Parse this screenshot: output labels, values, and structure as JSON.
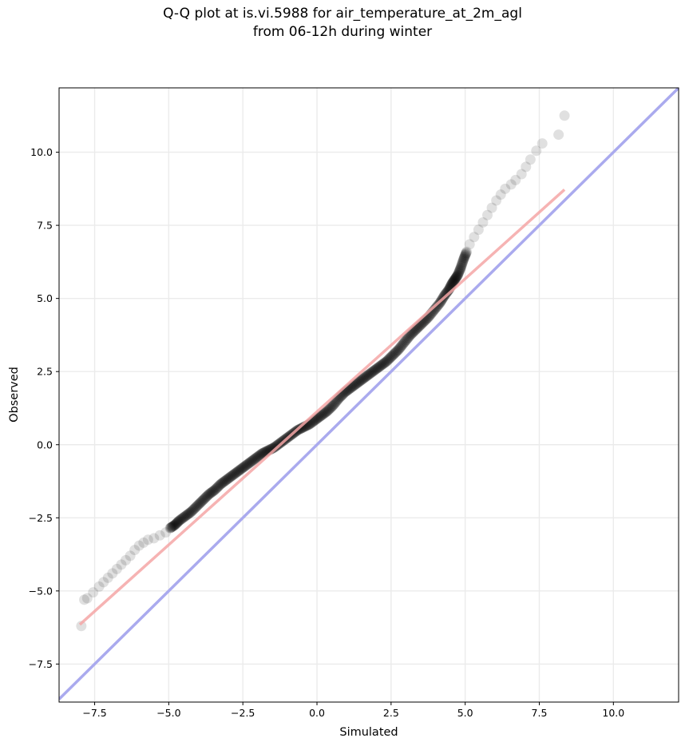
{
  "chart_data": {
    "type": "scatter",
    "title_lines": [
      "Q-Q plot at is.vi.5988 for air_temperature_at_2m_agl",
      "from 06-12h during winter"
    ],
    "xlabel": "Simulated",
    "ylabel": "Observed",
    "xlim": [
      -8.7,
      12.2
    ],
    "ylim": [
      -8.8,
      12.2
    ],
    "grid": true,
    "xticks": [
      -7.5,
      -5.0,
      -2.5,
      0.0,
      2.5,
      5.0,
      7.5,
      10.0
    ],
    "yticks": [
      -7.5,
      -5.0,
      -2.5,
      0.0,
      2.5,
      5.0,
      7.5,
      10.0
    ],
    "xtick_labels": [
      "−7.5",
      "−5.0",
      "−2.5",
      "0.0",
      "2.5",
      "5.0",
      "7.5",
      "10.0"
    ],
    "ytick_labels": [
      "−7.5",
      "−5.0",
      "−2.5",
      "0.0",
      "2.5",
      "5.0",
      "7.5",
      "10.0"
    ],
    "colors": {
      "points": "#000000",
      "identity_line": "#aaaaee",
      "fit_line": "#f4a6a6",
      "grid": "#ebebeb"
    },
    "identity_line": {
      "x": [
        -8.7,
        12.2
      ],
      "y": [
        -8.7,
        12.2
      ]
    },
    "fit_line": {
      "x": [
        -8.0,
        8.35
      ],
      "y": [
        -6.15,
        8.72
      ]
    },
    "points": {
      "x": [
        -7.95,
        -7.85,
        -7.75,
        -7.55,
        -7.35,
        -7.2,
        -7.05,
        -6.9,
        -6.75,
        -6.6,
        -6.45,
        -6.3,
        -6.15,
        -6.0,
        -5.85,
        -5.7,
        -5.5,
        -5.3,
        -5.1,
        -4.95,
        -4.8,
        -4.65,
        -4.45,
        -4.25,
        -4.05,
        -3.85,
        -3.65,
        -3.45,
        -3.25,
        -3.05,
        -2.85,
        -2.65,
        -2.45,
        -2.25,
        -2.05,
        -1.85,
        -1.65,
        -1.45,
        -1.25,
        -1.05,
        -0.85,
        -0.65,
        -0.45,
        -0.25,
        -0.05,
        0.15,
        0.35,
        0.55,
        0.75,
        0.95,
        1.15,
        1.35,
        1.55,
        1.75,
        1.95,
        2.15,
        2.35,
        2.55,
        2.75,
        2.95,
        3.15,
        3.35,
        3.55,
        3.75,
        3.95,
        4.15,
        4.3,
        4.45,
        4.55,
        4.65,
        4.75,
        4.85,
        4.95,
        5.05,
        5.15,
        5.3,
        5.45,
        5.6,
        5.75,
        5.9,
        6.05,
        6.2,
        6.35,
        6.55,
        6.7,
        6.9,
        7.05,
        7.2,
        7.4,
        7.6,
        8.15,
        8.35
      ],
      "y": [
        -6.2,
        -5.3,
        -5.25,
        -5.05,
        -4.85,
        -4.7,
        -4.55,
        -4.4,
        -4.25,
        -4.1,
        -3.95,
        -3.8,
        -3.6,
        -3.45,
        -3.35,
        -3.25,
        -3.2,
        -3.1,
        -3.0,
        -2.85,
        -2.75,
        -2.6,
        -2.45,
        -2.3,
        -2.1,
        -1.9,
        -1.7,
        -1.55,
        -1.35,
        -1.2,
        -1.05,
        -0.9,
        -0.75,
        -0.6,
        -0.45,
        -0.3,
        -0.2,
        -0.1,
        0.05,
        0.2,
        0.35,
        0.5,
        0.6,
        0.7,
        0.85,
        1.0,
        1.15,
        1.35,
        1.6,
        1.8,
        1.95,
        2.1,
        2.25,
        2.4,
        2.55,
        2.7,
        2.85,
        3.05,
        3.25,
        3.5,
        3.75,
        3.95,
        4.15,
        4.35,
        4.6,
        4.85,
        5.1,
        5.3,
        5.5,
        5.65,
        5.8,
        6.05,
        6.35,
        6.6,
        6.85,
        7.1,
        7.35,
        7.6,
        7.85,
        8.1,
        8.35,
        8.55,
        8.75,
        8.9,
        9.05,
        9.25,
        9.5,
        9.75,
        10.05,
        10.3,
        10.6,
        11.25
      ]
    }
  }
}
